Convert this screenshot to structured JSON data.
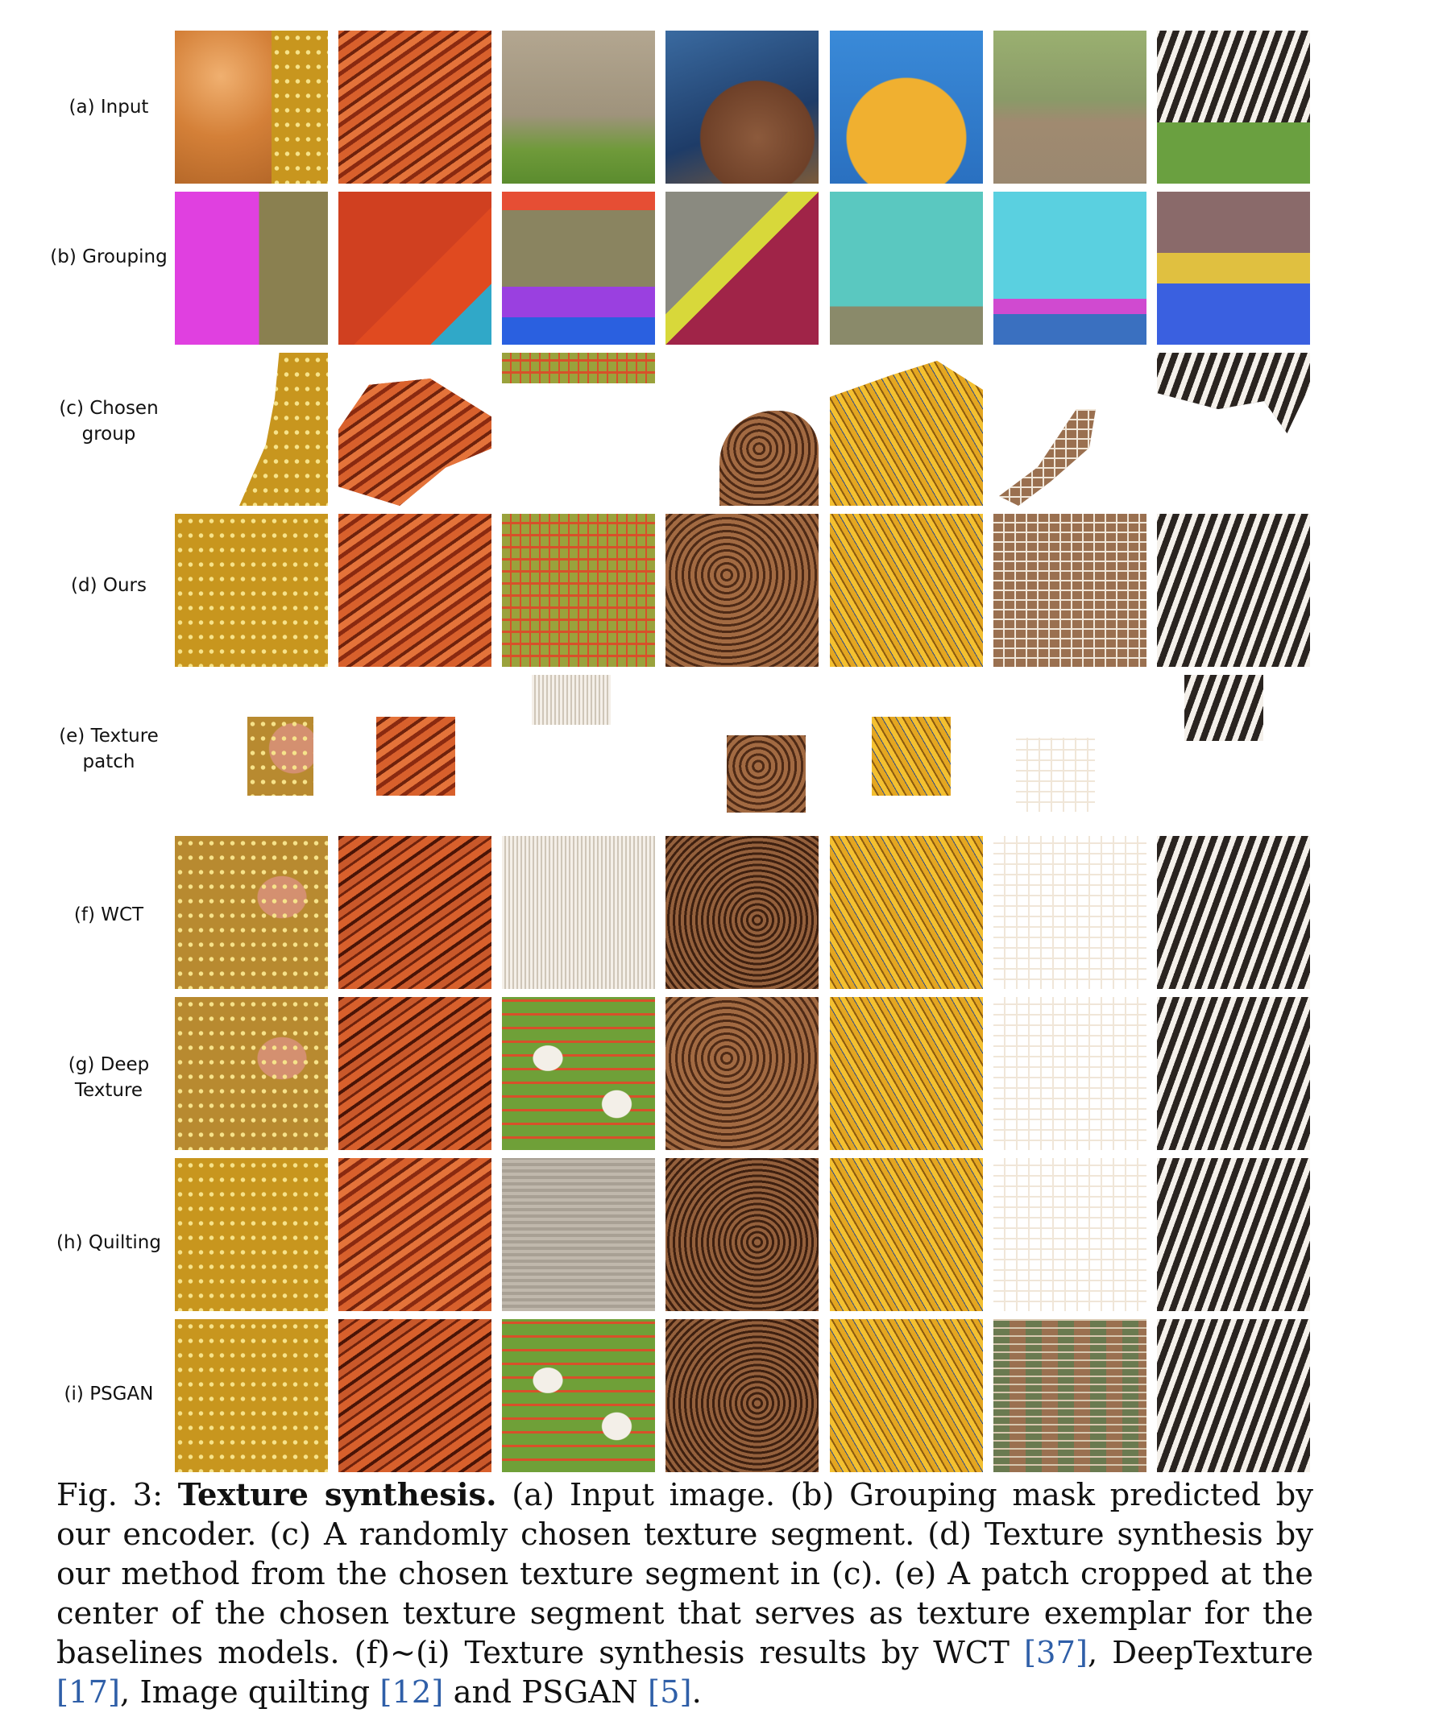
{
  "figure": {
    "rows": [
      {
        "label": "(a) Input"
      },
      {
        "label": "(b) Grouping"
      },
      {
        "label": "(c) Chosen\ngroup"
      },
      {
        "label": "(d) Ours"
      },
      {
        "label": "(e) Texture\npatch"
      },
      {
        "label": "(f) WCT"
      },
      {
        "label": "(g) Deep\nTexture"
      },
      {
        "label": "(h) Quilting"
      },
      {
        "label": "(i) PSGAN"
      }
    ]
  },
  "caption": {
    "fig_number": "Fig. 3:",
    "fig_title": "Texture synthesis.",
    "text_1": "(a) Input image. (b) Grouping mask predicted by our encoder. (c) A randomly chosen texture segment. (d) Texture synthesis by our method from the chosen texture segment in (c). (e) A patch cropped at the center of the chosen texture segment that serves as texture exemplar for the baselines models. (f)∼(i) Texture synthesis results by WCT ",
    "cite_1": "[37]",
    "text_2": ", DeepTexture ",
    "cite_2": "[17]",
    "text_3": ", Image quilting ",
    "cite_3": "[12]",
    "text_4": " and PSGAN ",
    "cite_4": "[5]",
    "text_5": "."
  }
}
